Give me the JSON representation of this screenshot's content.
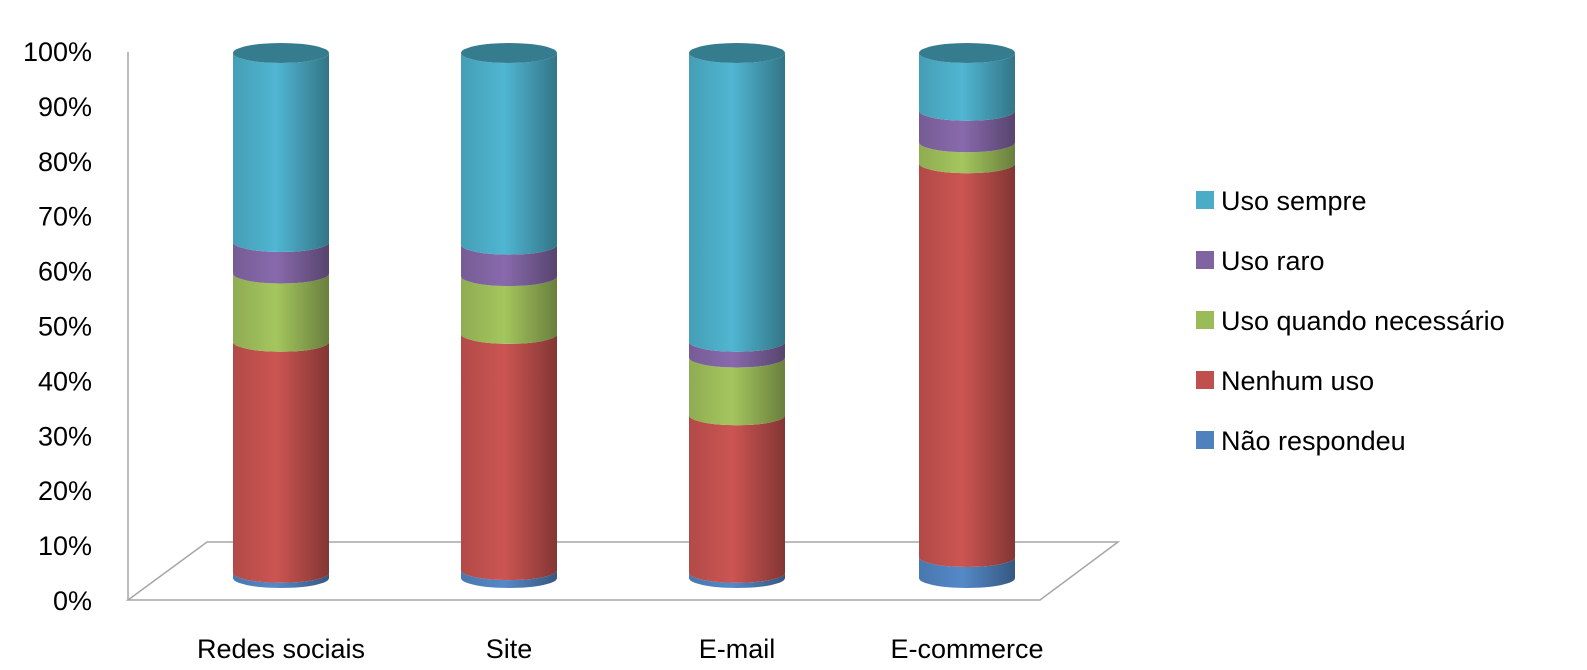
{
  "chart_data": {
    "type": "bar",
    "stacked": true,
    "percent_stacked": true,
    "style": "3d-cylinder",
    "title": "",
    "xlabel": "",
    "ylabel": "",
    "categories": [
      "Redes sociais",
      "Site",
      "E-mail",
      "E-commerce"
    ],
    "ylim": [
      0,
      100
    ],
    "yticks": [
      "0%",
      "10%",
      "20%",
      "30%",
      "40%",
      "50%",
      "60%",
      "70%",
      "80%",
      "90%",
      "100%"
    ],
    "grid": false,
    "legend_position": "right",
    "series": [
      {
        "name": "Não respondeu",
        "color": "#4F81BD",
        "values": [
          1,
          1.5,
          1,
          4
        ]
      },
      {
        "name": "Nenhum uso",
        "color": "#C0504D",
        "values": [
          44,
          45,
          30,
          75
        ]
      },
      {
        "name": "Uso quando necessário",
        "color": "#9BBB59",
        "values": [
          13,
          11,
          11,
          4
        ]
      },
      {
        "name": "Uso raro",
        "color": "#8064A2",
        "values": [
          6,
          6,
          3,
          6
        ]
      },
      {
        "name": "Uso sempre",
        "color": "#4BACC6",
        "values": [
          36,
          36.5,
          55,
          11
        ]
      }
    ]
  }
}
